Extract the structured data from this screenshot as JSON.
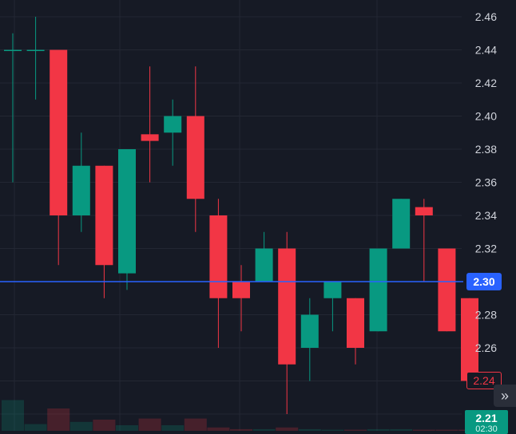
{
  "chart_data": {
    "type": "candlestick",
    "ylim": [
      2.21,
      2.47
    ],
    "grid": true,
    "y_ticks": [
      "2.46",
      "2.44",
      "2.42",
      "2.40",
      "2.38",
      "2.36",
      "2.34",
      "2.32",
      "2.28",
      "2.26"
    ],
    "current_price": "2.30",
    "ref_price": "2.24",
    "last_price": "2.21",
    "last_time": "02:30",
    "colors": {
      "up": "#089981",
      "down": "#f23645",
      "price_line": "#2962ff",
      "background": "#161a25",
      "grid": "#232733",
      "axis_text": "#d1d4dc"
    },
    "candles": [
      {
        "o": 2.44,
        "h": 2.45,
        "l": 2.36,
        "c": 2.44,
        "dir": "up"
      },
      {
        "o": 2.44,
        "h": 2.46,
        "l": 2.41,
        "c": 2.44,
        "dir": "up"
      },
      {
        "o": 2.44,
        "h": 2.44,
        "l": 2.31,
        "c": 2.34,
        "dir": "down"
      },
      {
        "o": 2.34,
        "h": 2.39,
        "l": 2.33,
        "c": 2.37,
        "dir": "up"
      },
      {
        "o": 2.37,
        "h": 2.37,
        "l": 2.29,
        "c": 2.31,
        "dir": "down"
      },
      {
        "o": 2.305,
        "h": 2.38,
        "l": 2.295,
        "c": 2.38,
        "dir": "up"
      },
      {
        "o": 2.389,
        "h": 2.43,
        "l": 2.36,
        "c": 2.385,
        "dir": "down"
      },
      {
        "o": 2.39,
        "h": 2.41,
        "l": 2.37,
        "c": 2.4,
        "dir": "up"
      },
      {
        "o": 2.4,
        "h": 2.43,
        "l": 2.33,
        "c": 2.35,
        "dir": "down"
      },
      {
        "o": 2.34,
        "h": 2.35,
        "l": 2.26,
        "c": 2.29,
        "dir": "down"
      },
      {
        "o": 2.3,
        "h": 2.31,
        "l": 2.27,
        "c": 2.29,
        "dir": "down"
      },
      {
        "o": 2.3,
        "h": 2.33,
        "l": 2.3,
        "c": 2.32,
        "dir": "up"
      },
      {
        "o": 2.32,
        "h": 2.33,
        "l": 2.22,
        "c": 2.25,
        "dir": "down"
      },
      {
        "o": 2.26,
        "h": 2.29,
        "l": 2.24,
        "c": 2.28,
        "dir": "up"
      },
      {
        "o": 2.29,
        "h": 2.3,
        "l": 2.27,
        "c": 2.3,
        "dir": "up"
      },
      {
        "o": 2.29,
        "h": 2.29,
        "l": 2.25,
        "c": 2.26,
        "dir": "down"
      },
      {
        "o": 2.27,
        "h": 2.32,
        "l": 2.27,
        "c": 2.32,
        "dir": "up"
      },
      {
        "o": 2.32,
        "h": 2.35,
        "l": 2.32,
        "c": 2.35,
        "dir": "up"
      },
      {
        "o": 2.345,
        "h": 2.35,
        "l": 2.3,
        "c": 2.34,
        "dir": "down"
      },
      {
        "o": 2.32,
        "h": 2.32,
        "l": 2.27,
        "c": 2.27,
        "dir": "down"
      },
      {
        "o": 2.29,
        "h": 2.29,
        "l": 2.24,
        "c": 2.24,
        "dir": "down"
      }
    ],
    "volume": [
      {
        "v": 0.55,
        "dir": "up"
      },
      {
        "v": 0.12,
        "dir": "up"
      },
      {
        "v": 0.4,
        "dir": "down"
      },
      {
        "v": 0.16,
        "dir": "up"
      },
      {
        "v": 0.2,
        "dir": "down"
      },
      {
        "v": 0.1,
        "dir": "up"
      },
      {
        "v": 0.22,
        "dir": "down"
      },
      {
        "v": 0.1,
        "dir": "up"
      },
      {
        "v": 0.22,
        "dir": "down"
      },
      {
        "v": 0.06,
        "dir": "down"
      },
      {
        "v": 0.03,
        "dir": "down"
      },
      {
        "v": 0.03,
        "dir": "up"
      },
      {
        "v": 0.06,
        "dir": "down"
      },
      {
        "v": 0.03,
        "dir": "up"
      },
      {
        "v": 0.02,
        "dir": "up"
      },
      {
        "v": 0.02,
        "dir": "down"
      },
      {
        "v": 0.03,
        "dir": "up"
      },
      {
        "v": 0.03,
        "dir": "up"
      },
      {
        "v": 0.02,
        "dir": "down"
      },
      {
        "v": 0.02,
        "dir": "down"
      },
      {
        "v": 0.02,
        "dir": "down"
      }
    ]
  },
  "ui": {
    "scroll_icon": "double-chevron-right-icon",
    "scroll_glyph": "»"
  }
}
